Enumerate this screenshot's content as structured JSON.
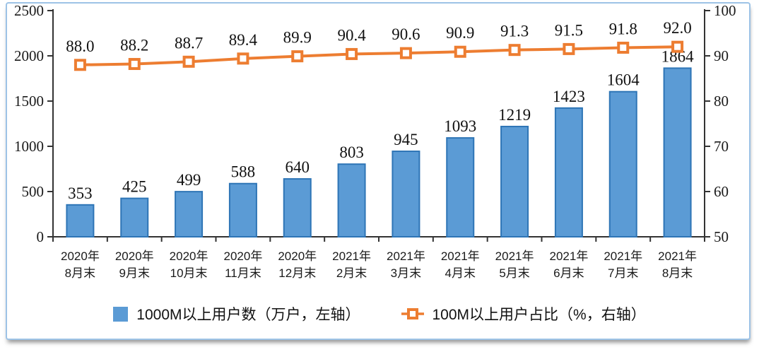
{
  "chart_data": {
    "type": "combo",
    "subtype": [
      "bar",
      "line"
    ],
    "categories": [
      [
        "2020年",
        "8月末"
      ],
      [
        "2020年",
        "9月末"
      ],
      [
        "2020年",
        "10月末"
      ],
      [
        "2020年",
        "11月末"
      ],
      [
        "2020年",
        "12月末"
      ],
      [
        "2021年",
        "2月末"
      ],
      [
        "2021年",
        "3月末"
      ],
      [
        "2021年",
        "4月末"
      ],
      [
        "2021年",
        "5月末"
      ],
      [
        "2021年",
        "6月末"
      ],
      [
        "2021年",
        "7月末"
      ],
      [
        "2021年",
        "8月末"
      ]
    ],
    "series": [
      {
        "name": "1000M以上用户数（万户，左轴）",
        "type": "bar",
        "axis": "left",
        "values": [
          353,
          425,
          499,
          588,
          640,
          803,
          945,
          1093,
          1219,
          1423,
          1604,
          1864
        ],
        "labels": [
          "353",
          "425",
          "499",
          "588",
          "640",
          "803",
          "945",
          "1093",
          "1219",
          "1423",
          "1604",
          "1864"
        ],
        "color": "#5B9BD5",
        "border_color": "#2E75B6"
      },
      {
        "name": "100M以上用户占比（%，右轴）",
        "type": "line",
        "axis": "right",
        "values": [
          88.0,
          88.2,
          88.7,
          89.4,
          89.9,
          90.4,
          90.6,
          90.9,
          91.3,
          91.5,
          91.8,
          92.0
        ],
        "labels": [
          "88.0",
          "88.2",
          "88.7",
          "89.4",
          "89.9",
          "90.4",
          "90.6",
          "90.9",
          "91.3",
          "91.5",
          "91.8",
          "92.0"
        ],
        "color": "#ED7D31",
        "marker": "square-open"
      }
    ],
    "left_axis": {
      "min": 0,
      "max": 2500,
      "step": 500
    },
    "right_axis": {
      "min": 50,
      "max": 100,
      "step": 10
    },
    "legend_position": "bottom",
    "grid": false,
    "axis_color": "#333333",
    "frame_border_color": "#9DC3E6"
  }
}
